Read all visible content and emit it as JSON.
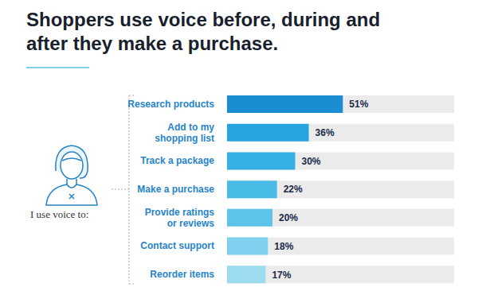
{
  "chart_data": {
    "type": "bar",
    "orientation": "horizontal",
    "title": "Shoppers use voice before, during and after they make a purchase.",
    "annotations": [
      "I use voice to:"
    ],
    "categories": [
      "Research products",
      "Add to my shopping list",
      "Track a package",
      "Make a purchase",
      "Provide ratings or reviews",
      "Contact support",
      "Reorder items"
    ],
    "values": [
      51,
      36,
      30,
      22,
      20,
      18,
      17
    ],
    "value_labels": [
      "51%",
      "36%",
      "30%",
      "22%",
      "20%",
      "18%",
      "17%"
    ],
    "colors": [
      "#1b8ed3",
      "#27a3de",
      "#35b0e3",
      "#48bbe6",
      "#5cc4e9",
      "#7fd0ee",
      "#9ddbf1"
    ],
    "xlim": [
      0,
      100
    ],
    "tick_labels": "y",
    "data_labels": true,
    "grid": false
  }
}
